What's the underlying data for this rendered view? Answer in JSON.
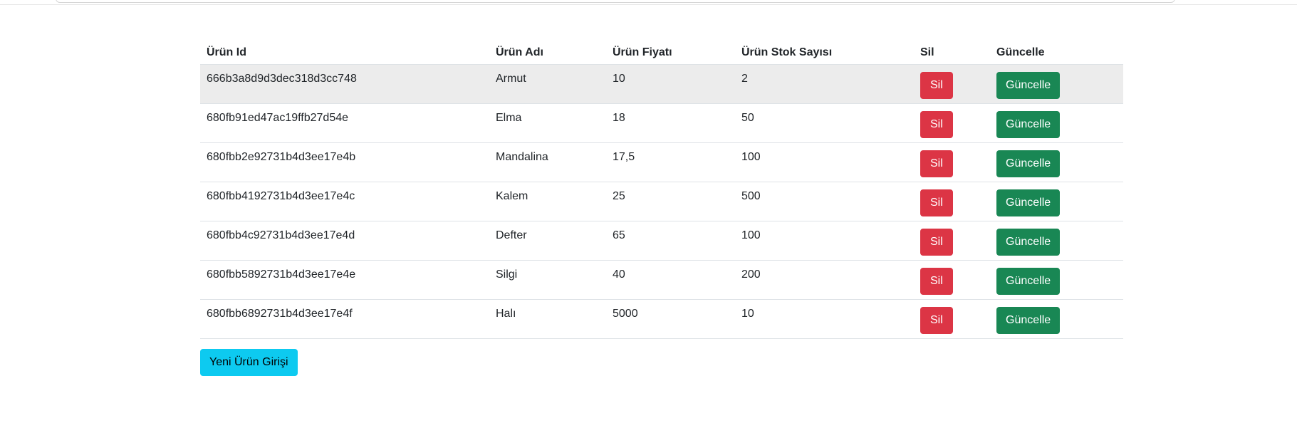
{
  "table": {
    "headers": [
      "Ürün Id",
      "Ürün Adı",
      "Ürün Fiyatı",
      "Ürün Stok Sayısı",
      "Sil",
      "Güncelle"
    ],
    "rows": [
      {
        "id": "666b3a8d9d3dec318d3cc748",
        "name": "Armut",
        "price": "10",
        "stock": "2"
      },
      {
        "id": "680fb91ed47ac19ffb27d54e",
        "name": "Elma",
        "price": "18",
        "stock": "50"
      },
      {
        "id": "680fbb2e92731b4d3ee17e4b",
        "name": "Mandalina",
        "price": "17,5",
        "stock": "100"
      },
      {
        "id": "680fbb4192731b4d3ee17e4c",
        "name": "Kalem",
        "price": "25",
        "stock": "500"
      },
      {
        "id": "680fbb4c92731b4d3ee17e4d",
        "name": "Defter",
        "price": "65",
        "stock": "100"
      },
      {
        "id": "680fbb5892731b4d3ee17e4e",
        "name": "Silgi",
        "price": "40",
        "stock": "200"
      },
      {
        "id": "680fbb6892731b4d3ee17e4f",
        "name": "Halı",
        "price": "5000",
        "stock": "10"
      }
    ],
    "delete_label": "Sil",
    "update_label": "Güncelle",
    "hovered_row_index": 0
  },
  "new_product_button": {
    "label": "Yeni Ürün Girişi"
  },
  "colors": {
    "danger": "#dc3545",
    "success": "#198754",
    "info": "#0dcaf0",
    "hover_row": "#ececec"
  }
}
